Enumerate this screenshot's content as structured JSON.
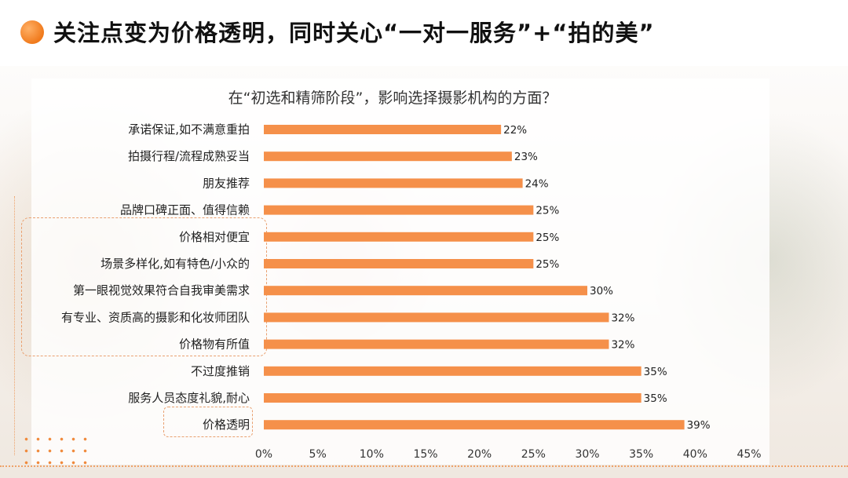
{
  "page": {
    "title": "关注点变为价格透明，同时关心“一对一服务”+“拍的美”"
  },
  "colors": {
    "accent": "#f07a1c",
    "bar": "#f5904a",
    "text": "#222222"
  },
  "chart_data": {
    "type": "bar",
    "orientation": "horizontal",
    "title": "在“初选和精筛阶段”，影响选择摄影机构的方面？",
    "categories": [
      "承诺保证,如不满意重拍",
      "拍摄行程/流程成熟妥当",
      "朋友推荐",
      "品牌口碑正面、值得信赖",
      "价格相对便宜",
      "场景多样化,如有特色/小众的",
      "第一眼视觉效果符合自我审美需求",
      "有专业、资质高的摄影和化妆师团队",
      "价格物有所值",
      "不过度推销",
      "服务人员态度礼貌,耐心",
      "价格透明"
    ],
    "values": [
      22,
      23,
      24,
      25,
      25,
      25,
      30,
      32,
      32,
      35,
      35,
      39
    ],
    "value_labels": [
      "22%",
      "23%",
      "24%",
      "25%",
      "25%",
      "25%",
      "30%",
      "32%",
      "32%",
      "35%",
      "35%",
      "39%"
    ],
    "xlim": [
      0,
      45
    ],
    "xticks": [
      "0%",
      "5%",
      "10%",
      "15%",
      "20%",
      "25%",
      "30%",
      "35%",
      "40%",
      "45%"
    ],
    "xlabel": "",
    "ylabel": "",
    "grid": false,
    "legend": "none"
  }
}
